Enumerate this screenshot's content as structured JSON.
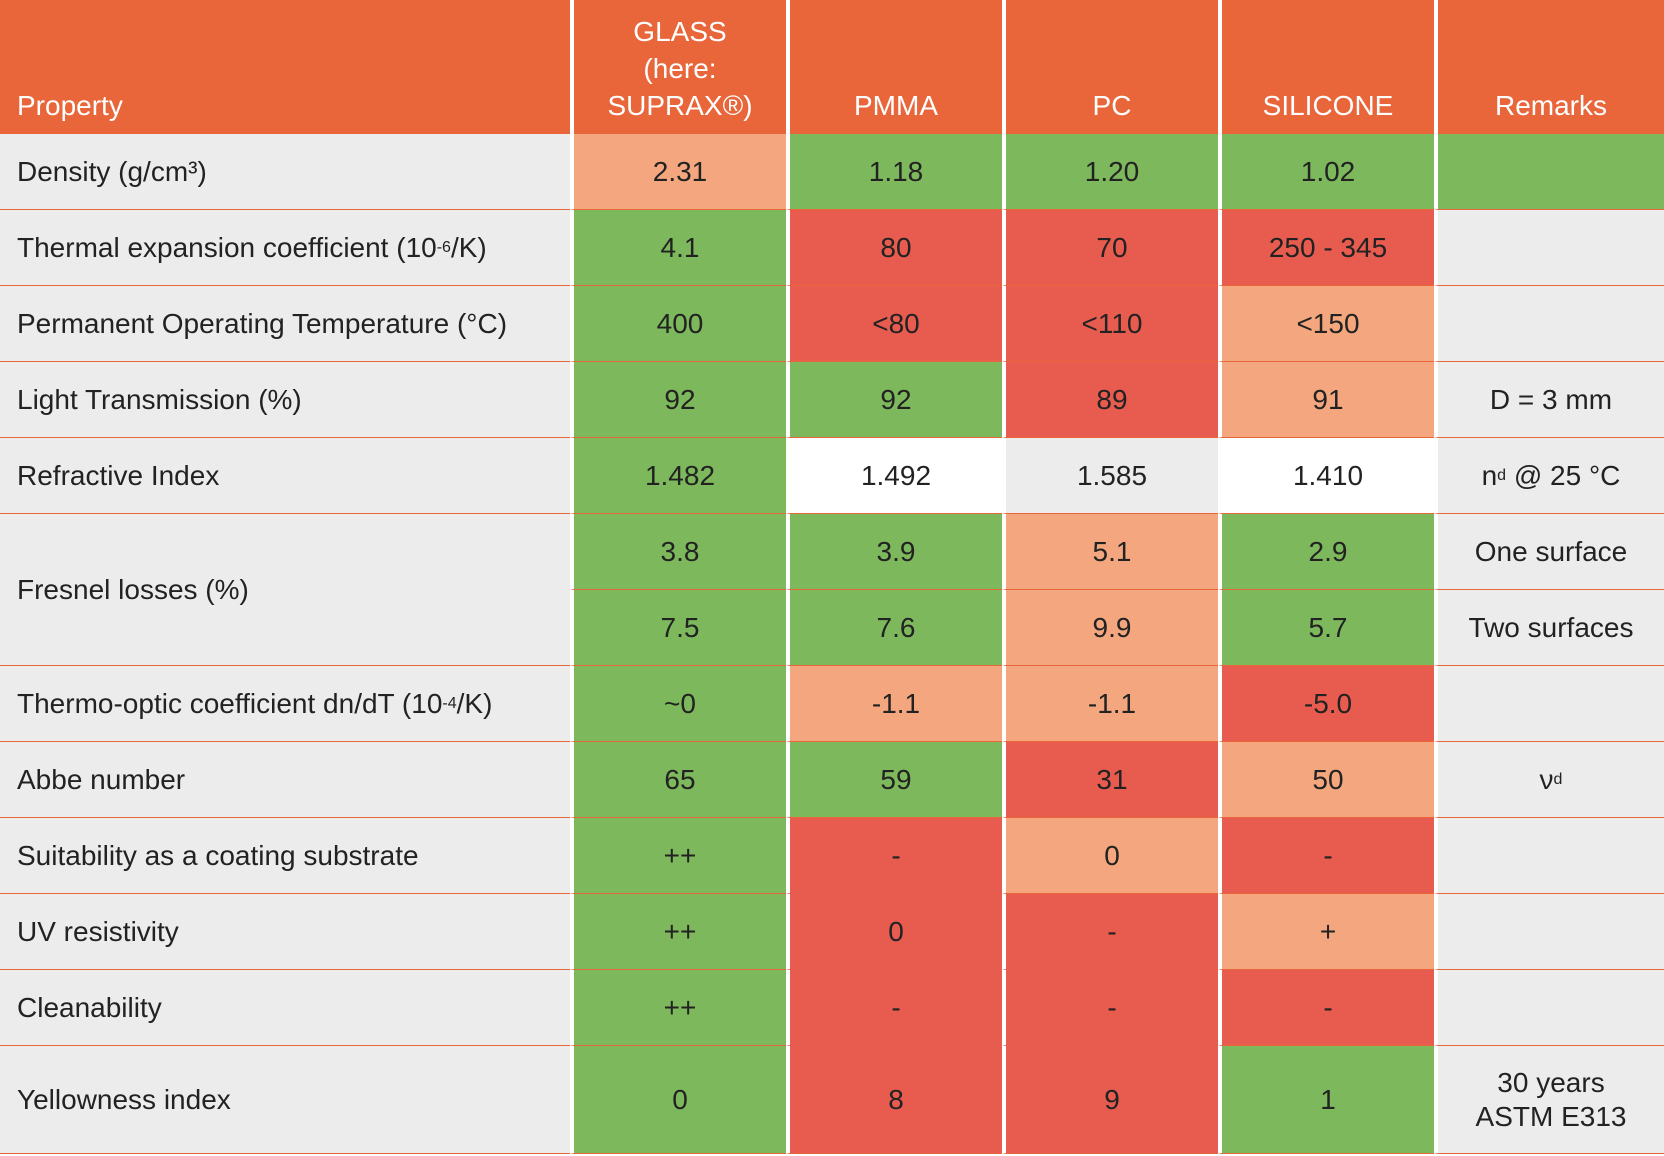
{
  "headers": {
    "property": "Property",
    "glass_line1": "GLASS",
    "glass_line2": "(here:",
    "glass_line3": "SUPRAX®)",
    "pmma": "PMMA",
    "pc": "PC",
    "silicone": "SILICONE",
    "remarks": "Remarks"
  },
  "colors": {
    "header": "#e8663a",
    "good": "#7db95c",
    "medium": "#f4a77e",
    "bad": "#e85c4f",
    "neutral": "#ececec"
  },
  "rows": [
    {
      "property": "Density (g/cm³)",
      "values": [
        "2.31",
        "1.18",
        "1.20",
        "1.02"
      ],
      "remark": "",
      "ratings": [
        "medium",
        "good",
        "good",
        "good",
        "good"
      ]
    },
    {
      "property_main": "Thermal expansion coefficient (10",
      "property_sup": "-6",
      "property_tail": "/K)",
      "values": [
        "4.1",
        "80",
        "70",
        "250 - 345"
      ],
      "remark": "",
      "ratings": [
        "good",
        "bad",
        "bad",
        "bad",
        "neutral"
      ]
    },
    {
      "property": "Permanent Operating Temperature (°C)",
      "values": [
        "400",
        "<80",
        "<110",
        "<150"
      ],
      "remark": "",
      "ratings": [
        "good",
        "bad",
        "bad",
        "medium",
        "neutral"
      ]
    },
    {
      "property": "Light Transmission (%)",
      "values": [
        "92",
        "92",
        "89",
        "91"
      ],
      "remark": "D = 3 mm",
      "ratings": [
        "good",
        "good",
        "bad",
        "medium",
        "neutral"
      ]
    },
    {
      "property": "Refractive Index",
      "values": [
        "1.482",
        "1.492",
        "1.585",
        "1.410"
      ],
      "remark_main": "n",
      "remark_sub": "d",
      "remark_tail": " @ 25 °C",
      "ratings": [
        "good",
        "white",
        "neutral",
        "white",
        "neutral"
      ]
    },
    {
      "property": "Fresnel losses (%)",
      "values_one": [
        "3.8",
        "3.9",
        "5.1",
        "2.9"
      ],
      "remark_one": "One surface",
      "values_two": [
        "7.5",
        "7.6",
        "9.9",
        "5.7"
      ],
      "remark_two": "Two surfaces",
      "ratings": [
        "good",
        "good",
        "medium",
        "good",
        "neutral"
      ]
    },
    {
      "property_main": "Thermo-optic coefficient dn/dT (10",
      "property_sup": "-4",
      "property_tail": "/K)",
      "values": [
        "~0",
        "-1.1",
        "-1.1",
        "-5.0"
      ],
      "remark": "",
      "ratings": [
        "good",
        "medium",
        "medium",
        "bad",
        "neutral"
      ]
    },
    {
      "property": "Abbe number",
      "values": [
        "65",
        "59",
        "31",
        "50"
      ],
      "remark_main": "ν",
      "remark_sub": "d",
      "ratings": [
        "good",
        "good",
        "bad",
        "medium",
        "neutral"
      ]
    },
    {
      "property": "Suitability as a coating substrate",
      "values": [
        "++",
        "-",
        "0",
        "-"
      ],
      "remark": "",
      "ratings": [
        "good",
        "bad",
        "medium",
        "bad",
        "neutral"
      ]
    },
    {
      "property": "UV resistivity",
      "values": [
        "++",
        "0",
        "-",
        "+"
      ],
      "remark": "",
      "ratings": [
        "good",
        "bad",
        "bad",
        "medium",
        "neutral"
      ]
    },
    {
      "property": "Cleanability",
      "values": [
        "++",
        "-",
        "-",
        "-"
      ],
      "remark": "",
      "ratings": [
        "good",
        "bad",
        "bad",
        "bad",
        "neutral"
      ]
    },
    {
      "property": "Yellowness index",
      "values": [
        "0",
        "8",
        "9",
        "1"
      ],
      "remark_line1": "30 years",
      "remark_line2": "ASTM E313",
      "ratings": [
        "good",
        "bad",
        "bad",
        "good",
        "neutral"
      ]
    }
  ]
}
